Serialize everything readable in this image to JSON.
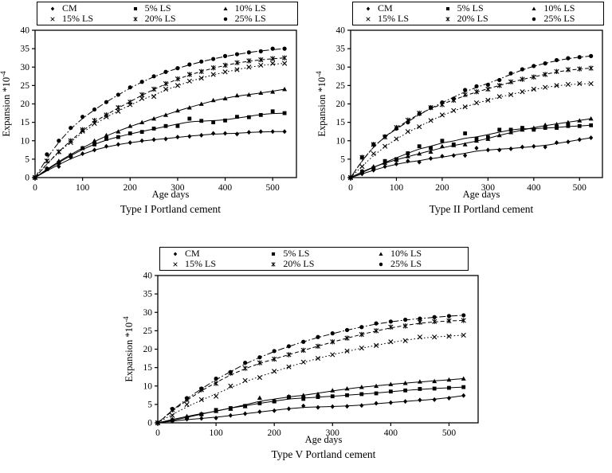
{
  "figure": {
    "background": "#ffffff",
    "ink": "#000000"
  },
  "chart_data": [
    {
      "type": "line",
      "title": "Type I Portland cement",
      "xlabel": "Age days",
      "ylabel": "Expansion *10⁻⁴",
      "ylabel_base": "Expansion *10",
      "ylabel_exponent": "-4",
      "xlim": [
        0,
        550
      ],
      "ylim": [
        0,
        40
      ],
      "xticks": [
        0,
        100,
        200,
        300,
        400,
        500
      ],
      "yticks": [
        0,
        5,
        10,
        15,
        20,
        25,
        30,
        35,
        40
      ],
      "legend_position": "top",
      "grid": false,
      "x": [
        0,
        25,
        50,
        75,
        100,
        125,
        150,
        175,
        200,
        225,
        250,
        275,
        300,
        325,
        350,
        375,
        400,
        425,
        450,
        475,
        500,
        525
      ],
      "series": [
        {
          "name": "CM",
          "marker": "diamond",
          "line_style": "solid",
          "values": [
            0,
            2.5,
            3,
            5.5,
            6.5,
            7.5,
            8.5,
            9,
            9.5,
            10,
            10.3,
            10.5,
            11,
            11.2,
            11.5,
            12,
            12,
            11.8,
            12.3,
            12.5,
            12.5,
            12.5
          ]
        },
        {
          "name": "5% LS",
          "marker": "square",
          "line_style": "solid",
          "values": [
            0,
            2.3,
            4,
            6,
            8,
            9,
            10.5,
            11,
            12,
            12.4,
            13.3,
            14,
            14,
            16,
            15.4,
            15,
            15.5,
            16.5,
            16.4,
            17,
            18,
            17.5
          ]
        },
        {
          "name": "10% LS",
          "marker": "triangle",
          "line_style": "solid",
          "values": [
            0,
            2.5,
            4.5,
            6.2,
            8,
            10,
            11.5,
            12.5,
            14,
            15,
            16,
            17,
            18.2,
            19,
            20,
            21,
            21.5,
            22.3,
            22.5,
            23,
            23.3,
            24
          ]
        },
        {
          "name": "15% LS",
          "marker": "x",
          "line_style": "dot",
          "values": [
            0,
            4.5,
            7,
            9.5,
            12.6,
            14.7,
            16.5,
            18,
            19.8,
            21.5,
            22,
            24,
            25,
            26.2,
            27,
            28,
            28.7,
            29.3,
            30,
            30.5,
            31,
            31
          ]
        },
        {
          "name": "20% LS",
          "marker": "star",
          "line_style": "dash",
          "values": [
            0,
            4.5,
            7,
            10,
            13,
            15.5,
            17,
            19,
            20.5,
            22.5,
            24,
            25.5,
            26.8,
            28,
            28.8,
            29.8,
            30.5,
            31.2,
            31.7,
            32,
            32.3,
            32.5
          ]
        },
        {
          "name": "25% LS",
          "marker": "circle",
          "line_style": "dashdot",
          "values": [
            0,
            6.3,
            10,
            13.5,
            16.5,
            18.5,
            20.5,
            22.5,
            24.5,
            26,
            27.5,
            28.7,
            29.7,
            30.7,
            31.5,
            32.2,
            33,
            33.5,
            34,
            34.3,
            35,
            35
          ]
        }
      ]
    },
    {
      "type": "line",
      "title": "Type II Portland cement",
      "xlabel": "Age days",
      "ylabel": "Expansion *10⁻⁴",
      "ylabel_base": "Expansion *10",
      "ylabel_exponent": "-4",
      "xlim": [
        0,
        550
      ],
      "ylim": [
        0,
        40
      ],
      "xticks": [
        0,
        100,
        200,
        300,
        400,
        500
      ],
      "yticks": [
        0,
        5,
        10,
        15,
        20,
        25,
        30,
        35,
        40
      ],
      "legend_position": "top",
      "grid": false,
      "x": [
        0,
        25,
        50,
        75,
        100,
        125,
        150,
        175,
        200,
        225,
        250,
        275,
        300,
        325,
        350,
        375,
        400,
        425,
        450,
        475,
        500,
        525
      ],
      "series": [
        {
          "name": "CM",
          "marker": "diamond",
          "line_style": "solid",
          "values": [
            0,
            1,
            2,
            3,
            3.7,
            4.5,
            4.2,
            5.2,
            5.8,
            6,
            6,
            8,
            7.5,
            7.5,
            7.8,
            8.3,
            8.5,
            8.3,
            9.5,
            9.7,
            10.3,
            10.8
          ]
        },
        {
          "name": "5% LS",
          "marker": "square",
          "line_style": "solid",
          "values": [
            0,
            1.6,
            2.5,
            4.5,
            5,
            6.6,
            8.5,
            8,
            10,
            9,
            12,
            10.5,
            11,
            13,
            13,
            13.5,
            13,
            13.5,
            13.5,
            14,
            14,
            14.2
          ]
        },
        {
          "name": "10% LS",
          "marker": "triangle",
          "line_style": "solid",
          "values": [
            0,
            1.8,
            3,
            4,
            4.8,
            5.8,
            6.5,
            7,
            8.5,
            8.8,
            9,
            10,
            10.5,
            11.5,
            12.3,
            13,
            13.5,
            14.3,
            14.5,
            15,
            15.5,
            16
          ]
        },
        {
          "name": "15% LS",
          "marker": "x",
          "line_style": "dot",
          "values": [
            0,
            3,
            6.5,
            8.5,
            10.5,
            12.5,
            13.8,
            15.5,
            17,
            18.2,
            19.2,
            20.3,
            21,
            22,
            22.5,
            23.3,
            24,
            24.5,
            25,
            25.3,
            25.5,
            25.5
          ]
        },
        {
          "name": "20% LS",
          "marker": "star",
          "line_style": "dash",
          "values": [
            0,
            5.5,
            9,
            11,
            13.6,
            15.6,
            17.5,
            19,
            19.8,
            21,
            22.5,
            23.3,
            24,
            25,
            26,
            26.7,
            27.3,
            28,
            28.8,
            29.3,
            29.5,
            29.7
          ]
        },
        {
          "name": "25% LS",
          "marker": "circle",
          "line_style": "dashdot",
          "values": [
            0,
            5.5,
            9,
            11.2,
            13.3,
            15,
            17.3,
            19,
            20.4,
            21.4,
            23.8,
            24.8,
            25.2,
            26.5,
            28.3,
            29.4,
            30.3,
            31,
            31.9,
            32.4,
            32.7,
            33
          ]
        }
      ]
    },
    {
      "type": "line",
      "title": "Type V Portland cement",
      "xlabel": "Age days",
      "ylabel": "Expansion *10⁻⁴",
      "ylabel_base": "Expansion *10",
      "ylabel_exponent": "-4",
      "xlim": [
        0,
        550
      ],
      "ylim": [
        0,
        40
      ],
      "xticks": [
        0,
        100,
        200,
        300,
        400,
        500
      ],
      "yticks": [
        0,
        5,
        10,
        15,
        20,
        25,
        30,
        35,
        40
      ],
      "legend_position": "top",
      "grid": false,
      "x": [
        0,
        25,
        50,
        75,
        100,
        125,
        150,
        175,
        200,
        225,
        250,
        275,
        300,
        325,
        350,
        375,
        400,
        425,
        450,
        475,
        500,
        525
      ],
      "series": [
        {
          "name": "CM",
          "marker": "diamond",
          "line_style": "solid",
          "values": [
            0,
            0.5,
            1,
            1.2,
            1.3,
            2,
            2.5,
            3,
            3.3,
            3.8,
            4.6,
            4.2,
            4.4,
            4.5,
            4.7,
            5.3,
            5.5,
            5.8,
            6.2,
            6.3,
            6.7,
            7.4
          ]
        },
        {
          "name": "5% LS",
          "marker": "square",
          "line_style": "solid",
          "values": [
            0,
            0.7,
            1.3,
            2.3,
            3.5,
            4,
            4.6,
            5.3,
            5.8,
            7,
            6.5,
            7,
            7.2,
            7.5,
            7.8,
            8,
            8.5,
            8.8,
            9.2,
            9.3,
            9.5,
            9.7
          ]
        },
        {
          "name": "10% LS",
          "marker": "triangle",
          "line_style": "solid",
          "values": [
            0,
            1,
            1.8,
            2.5,
            3.2,
            3.8,
            4.5,
            6.8,
            6,
            7.2,
            7.5,
            7.8,
            8.8,
            9.3,
            9.7,
            10,
            10.5,
            10.8,
            11.2,
            11.3,
            11.7,
            12
          ]
        },
        {
          "name": "15% LS",
          "marker": "x",
          "line_style": "dot",
          "values": [
            0,
            2,
            5,
            6.3,
            7.2,
            10,
            11.5,
            12.3,
            14,
            15.2,
            16.5,
            17.5,
            18.5,
            19.5,
            20.3,
            21,
            22,
            22.3,
            23.3,
            23.3,
            23.5,
            23.8
          ]
        },
        {
          "name": "20% LS",
          "marker": "star",
          "line_style": "dash",
          "values": [
            0,
            3.5,
            6.3,
            9,
            10.7,
            13.5,
            14.8,
            16.3,
            17.3,
            18.5,
            19.7,
            20.8,
            22,
            23,
            24,
            25,
            26,
            26.3,
            27.3,
            27.5,
            27.7,
            27.8
          ]
        },
        {
          "name": "25% LS",
          "marker": "circle",
          "line_style": "dashdot",
          "values": [
            0,
            3.8,
            6.7,
            9.3,
            12,
            13.8,
            16.3,
            17.8,
            19.5,
            20.8,
            22,
            23.3,
            24.3,
            25.2,
            26,
            27,
            27.5,
            28,
            28.3,
            28.7,
            29,
            29.2
          ]
        }
      ]
    }
  ]
}
